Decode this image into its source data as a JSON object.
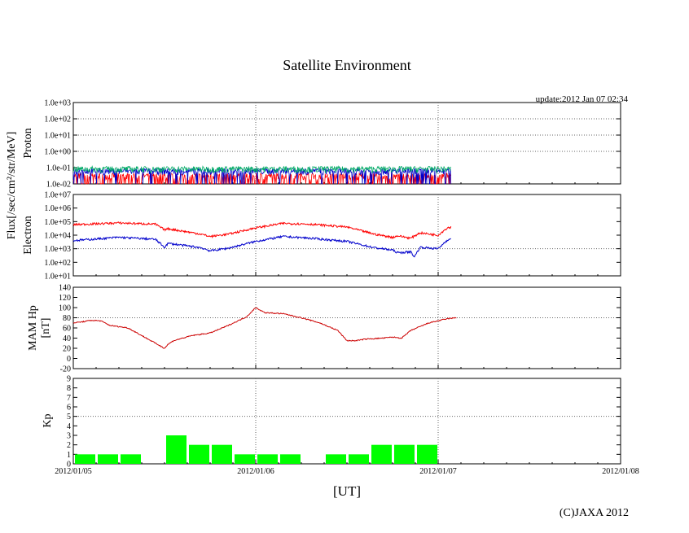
{
  "page": {
    "title": "Satellite Environment",
    "update": "update:2012 Jan 07 02:34",
    "copyright": "(C)JAXA 2012"
  },
  "chart_data": {
    "type": "line",
    "title": "Satellite Environment",
    "xlabel": "[UT]",
    "x_ticks": [
      "2012/01/05",
      "2012/01/06",
      "2012/01/07",
      "2012/01/08"
    ],
    "x_range_days": [
      0,
      3
    ],
    "panels": [
      {
        "id": "proton",
        "ylabel": "Proton",
        "scale": "log",
        "ylim": [
          0.01,
          1000
        ],
        "y_ticks": [
          "1.0e-02",
          "1.0e-01",
          "1.0e+00",
          "1.0e+01",
          "1.0e+02",
          "1.0e+03"
        ],
        "grid_y": [
          "1.0e+00",
          "1.0e+01",
          "1.0e+02"
        ],
        "series": [
          {
            "color": "#ff0000",
            "t": [
              0,
              2.07
            ],
            "baseline": 0.03,
            "spiky_to_floor": true
          },
          {
            "color": "#0000cc",
            "t": [
              0,
              2.07
            ],
            "baseline": 0.06
          },
          {
            "color": "#00aa66",
            "t": [
              0,
              2.07
            ],
            "baseline": 0.08
          }
        ]
      },
      {
        "id": "electron",
        "ylabel": "Electron",
        "scale": "log",
        "ylim": [
          10,
          10000000
        ],
        "y_ticks": [
          "1.0e+01",
          "1.0e+02",
          "1.0e+03",
          "1.0e+04",
          "1.0e+05",
          "1.0e+06",
          "1.0e+07"
        ],
        "grid_y": [
          "1.0e+03"
        ],
        "series": [
          {
            "color": "#ff0000",
            "t": [
              0,
              0.25,
              0.45,
              0.5,
              0.52,
              0.7,
              0.75,
              0.85,
              1.0,
              1.15,
              1.3,
              1.5,
              1.65,
              1.75,
              1.78,
              1.85,
              1.9,
              2.0,
              2.05,
              2.07
            ],
            "v": [
              60000,
              80000,
              65000,
              25000,
              30000,
              12000,
              8000,
              12000,
              35000,
              75000,
              65000,
              40000,
              12000,
              7000,
              9000,
              6000,
              15000,
              10000,
              35000,
              40000
            ]
          },
          {
            "color": "#0000cc",
            "t": [
              0,
              0.25,
              0.45,
              0.5,
              0.52,
              0.7,
              0.75,
              0.85,
              1.0,
              1.15,
              1.3,
              1.5,
              1.65,
              1.75,
              1.78,
              1.85,
              1.87,
              1.9,
              2.0,
              2.05,
              2.07
            ],
            "v": [
              4000,
              7000,
              5000,
              1300,
              2500,
              1200,
              700,
              1100,
              3500,
              8000,
              6000,
              3500,
              1200,
              800,
              500,
              600,
              250,
              1300,
              1000,
              4500,
              5000
            ]
          }
        ]
      },
      {
        "id": "hp",
        "ylabel": "MAM Hp",
        "ylabel2": "[nT]",
        "scale": "linear",
        "ylim": [
          -20,
          140
        ],
        "y_ticks": [
          "-20",
          "0",
          "20",
          "40",
          "60",
          "80",
          "100",
          "120",
          "140"
        ],
        "grid_y": [
          "80"
        ],
        "series": [
          {
            "color": "#cc0000",
            "t": [
              0,
              0.05,
              0.1,
              0.15,
              0.2,
              0.3,
              0.4,
              0.45,
              0.5,
              0.52,
              0.55,
              0.65,
              0.75,
              0.85,
              0.95,
              1.0,
              1.05,
              1.15,
              1.25,
              1.35,
              1.45,
              1.5,
              1.55,
              1.6,
              1.7,
              1.75,
              1.8,
              1.85,
              1.95,
              2.05,
              2.1
            ],
            "v": [
              70,
              72,
              75,
              74,
              65,
              60,
              40,
              30,
              20,
              28,
              35,
              45,
              50,
              65,
              82,
              100,
              90,
              88,
              80,
              70,
              55,
              35,
              35,
              38,
              40,
              42,
              40,
              55,
              70,
              78,
              80
            ]
          }
        ]
      },
      {
        "id": "kp",
        "ylabel": "Kp",
        "scale": "linear",
        "ylim": [
          0,
          9
        ],
        "y_ticks": [
          "0",
          "1",
          "2",
          "3",
          "4",
          "5",
          "6",
          "7",
          "8",
          "9"
        ],
        "grid_y": [
          "5"
        ],
        "bars_per_day": 8,
        "bar_color": "#00ff00",
        "values": [
          1,
          1,
          1,
          0,
          3,
          2,
          2,
          1,
          1,
          1,
          0,
          1,
          1,
          2,
          2,
          2
        ]
      }
    ],
    "shared_ylabel": "Flux[/sec/cm²/str/MeV]",
    "grid_x": [
      "2012/01/06",
      "2012/01/07"
    ]
  }
}
